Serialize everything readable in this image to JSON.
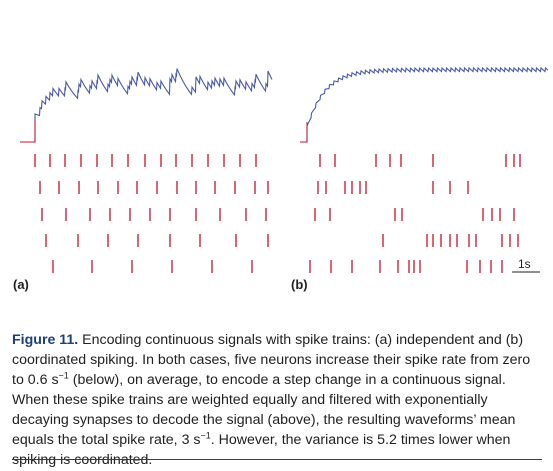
{
  "figure": {
    "panel_a_label": "(a)",
    "panel_b_label": "(b)",
    "scale_bar_label": "1s",
    "line_color": "#4a5aa8",
    "spike_color": "#c8102e"
  },
  "caption": {
    "figure_number": "Figure 11.",
    "part1": " Encoding continuous signals with spike trains: (a) independent and (b) coordinated spiking. In both cases, five neurons increase their spike rate from zero to 0.6 s",
    "sup1": "−1",
    "part2": " (below), on average, to encode a step change in a continuous signal. When these spike trains are weighted equally and filtered with exponentially decaying synapses to decode the signal (above), the resulting waveforms’ mean equals the total spike rate, 3 s",
    "sup2": "−1",
    "part3": ". However, the variance is 5.2 times lower when spiking is coordinated."
  }
}
